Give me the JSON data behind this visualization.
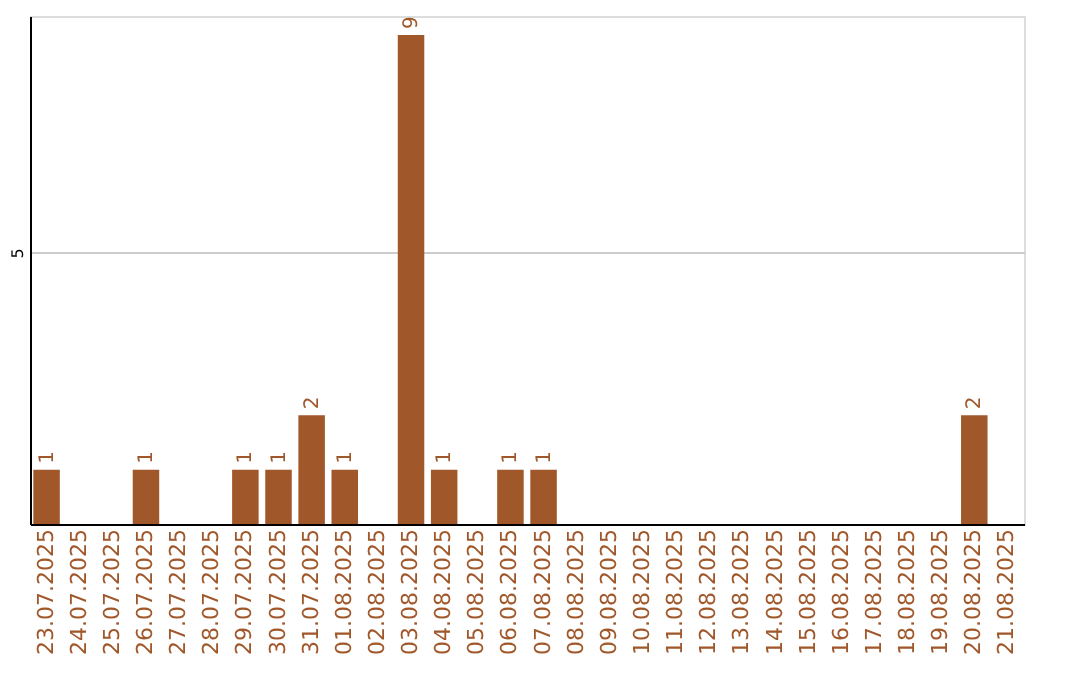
{
  "chart_data": {
    "type": "bar",
    "categories": [
      "23.07.2025",
      "24.07.2025",
      "25.07.2025",
      "26.07.2025",
      "27.07.2025",
      "28.07.2025",
      "29.07.2025",
      "30.07.2025",
      "31.07.2025",
      "01.08.2025",
      "02.08.2025",
      "03.08.2025",
      "04.08.2025",
      "05.08.2025",
      "06.08.2025",
      "07.08.2025",
      "08.08.2025",
      "09.08.2025",
      "10.08.2025",
      "11.08.2025",
      "12.08.2025",
      "13.08.2025",
      "14.08.2025",
      "15.08.2025",
      "16.08.2025",
      "17.08.2025",
      "18.08.2025",
      "19.08.2025",
      "20.08.2025",
      "21.08.2025"
    ],
    "values": [
      1,
      0,
      0,
      1,
      0,
      0,
      1,
      1,
      2,
      1,
      0,
      9,
      1,
      0,
      1,
      1,
      0,
      0,
      0,
      0,
      0,
      0,
      0,
      0,
      0,
      0,
      0,
      0,
      2,
      0
    ],
    "value_labels": [
      "1",
      null,
      null,
      "1",
      null,
      null,
      "1",
      "1",
      "2",
      "1",
      null,
      "9",
      "1",
      null,
      "1",
      "1",
      null,
      null,
      null,
      null,
      null,
      null,
      null,
      null,
      null,
      null,
      null,
      null,
      "2",
      null
    ],
    "color": "#a0572a",
    "ylim": [
      0,
      9.35
    ],
    "yticks": [
      5
    ],
    "grid": "y"
  }
}
